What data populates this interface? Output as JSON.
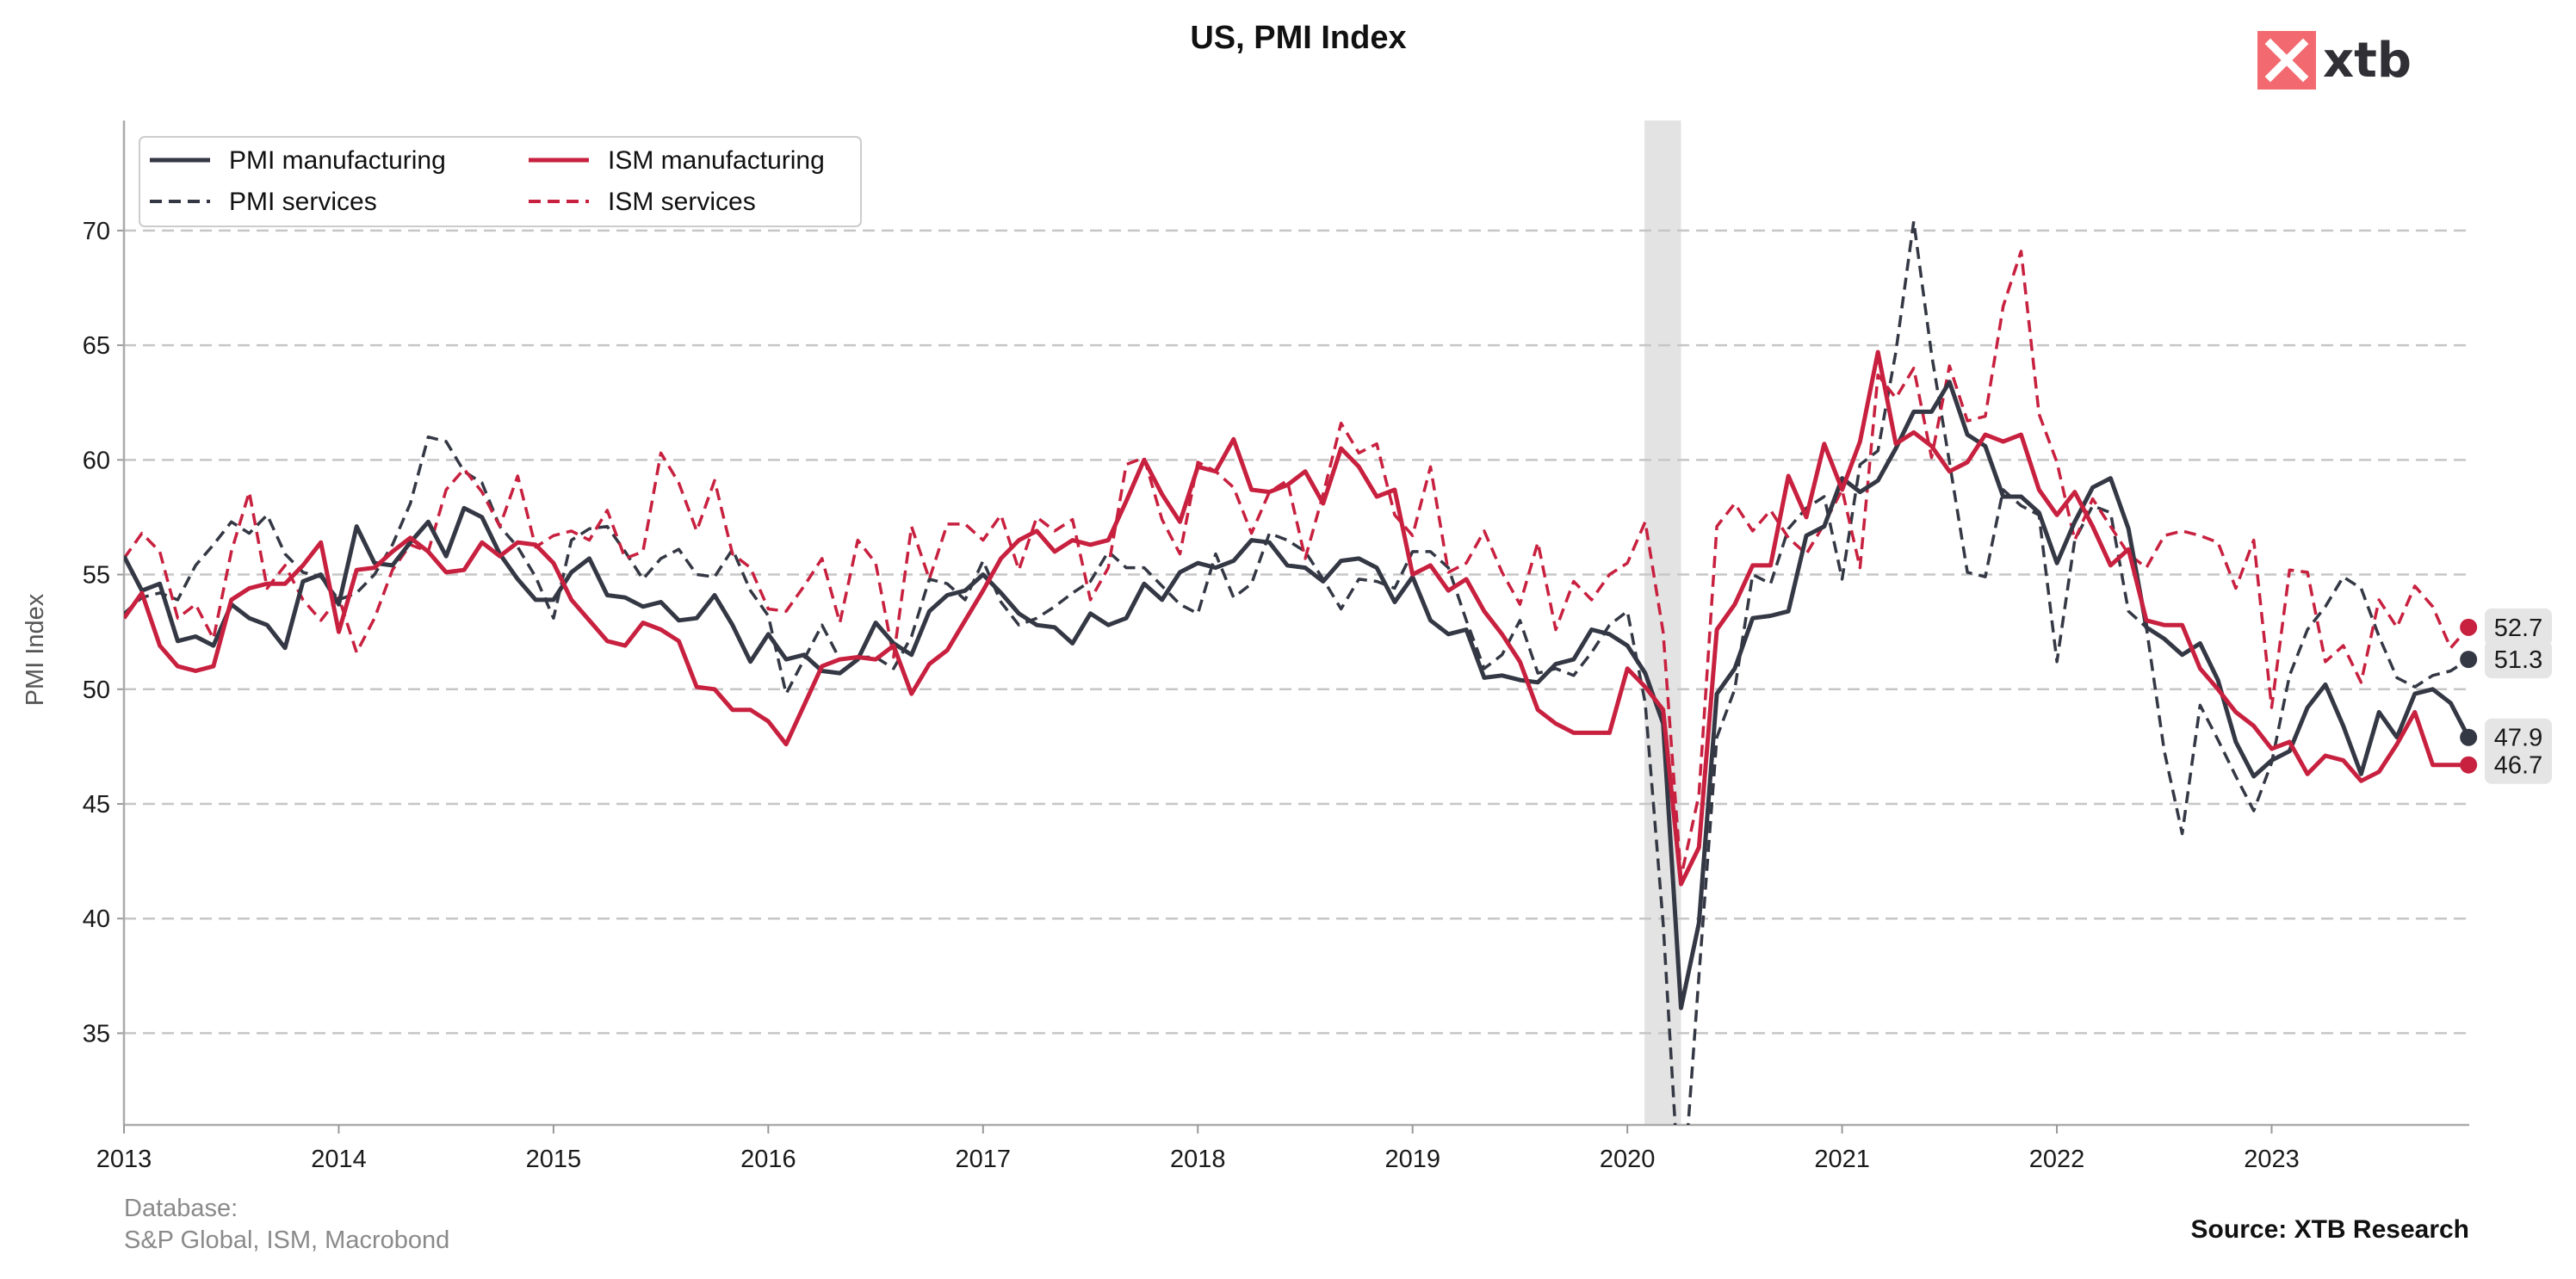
{
  "logo": {
    "text": "xtb",
    "color": "#f26a6f"
  },
  "footer": {
    "database_label": "Database:",
    "database_sources": "S&P Global, ISM, Macrobond",
    "source": "Source: XTB Research"
  },
  "colors": {
    "dark": "#343844",
    "red": "#c8203f",
    "shade": "#e3e3e3",
    "grid": "#c6c6c6"
  },
  "chart_data": {
    "type": "line",
    "title": "US, PMI Index",
    "ylabel": "PMI Index",
    "xlabel": "",
    "xlim": [
      2013.0,
      2023.92
    ],
    "ylim": [
      31,
      74.8
    ],
    "yticks": [
      35,
      40,
      45,
      50,
      55,
      60,
      65,
      70
    ],
    "xticks": [
      2013,
      2014,
      2015,
      2016,
      2017,
      2018,
      2019,
      2020,
      2021,
      2022,
      2023
    ],
    "grid": "horizontal dashed",
    "legend_position": "top-left",
    "shaded_period": [
      2020.08,
      2020.25
    ],
    "series_start": 2013.0,
    "series_step": "monthly",
    "series": [
      {
        "name": "PMI manufacturing",
        "color": "#343844",
        "style": "solid",
        "values": [
          55.8,
          54.3,
          54.6,
          52.1,
          52.3,
          51.9,
          53.7,
          53.1,
          52.8,
          51.8,
          54.7,
          55.0,
          53.7,
          57.1,
          55.5,
          55.4,
          56.4,
          57.3,
          55.8,
          57.9,
          57.5,
          55.9,
          54.8,
          53.9,
          53.9,
          55.1,
          55.7,
          54.1,
          54.0,
          53.6,
          53.8,
          53.0,
          53.1,
          54.1,
          52.8,
          51.2,
          52.4,
          51.3,
          51.5,
          50.8,
          50.7,
          51.3,
          52.9,
          52.0,
          51.5,
          53.4,
          54.1,
          54.3,
          55.0,
          54.2,
          53.3,
          52.8,
          52.7,
          52.0,
          53.3,
          52.8,
          53.1,
          54.6,
          53.9,
          55.1,
          55.5,
          55.3,
          55.6,
          56.5,
          56.4,
          55.4,
          55.3,
          54.7,
          55.6,
          55.7,
          55.3,
          53.8,
          54.9,
          53.0,
          52.4,
          52.6,
          50.5,
          50.6,
          50.4,
          50.3,
          51.1,
          51.3,
          52.6,
          52.4,
          51.9,
          50.7,
          48.5,
          36.1,
          39.8,
          49.8,
          50.9,
          53.1,
          53.2,
          53.4,
          56.7,
          57.1,
          59.2,
          58.6,
          59.1,
          60.5,
          62.1,
          62.1,
          63.4,
          61.1,
          60.6,
          58.4,
          58.4,
          57.7,
          55.5,
          57.3,
          58.8,
          59.2,
          57.0,
          52.7,
          52.2,
          51.5,
          52.0,
          50.4,
          47.7,
          46.2,
          46.9,
          47.3,
          49.2,
          50.2,
          48.4,
          46.3,
          49.0,
          47.9,
          49.8,
          50.0,
          49.4,
          47.9
        ]
      },
      {
        "name": "ISM manufacturing",
        "color": "#c8203f",
        "style": "solid",
        "values": [
          53.1,
          54.2,
          51.9,
          51.0,
          50.8,
          51.0,
          53.9,
          54.4,
          54.6,
          54.6,
          55.4,
          56.4,
          52.5,
          55.2,
          55.3,
          56.0,
          56.6,
          56.0,
          55.1,
          55.2,
          56.4,
          55.8,
          56.4,
          56.3,
          55.5,
          53.9,
          53.0,
          52.1,
          51.9,
          52.9,
          52.6,
          52.1,
          50.1,
          50.0,
          49.1,
          49.1,
          48.6,
          47.6,
          49.3,
          51.0,
          51.3,
          51.4,
          51.3,
          51.9,
          49.8,
          51.1,
          51.7,
          53.0,
          54.3,
          55.7,
          56.5,
          56.9,
          56.0,
          56.5,
          56.3,
          56.5,
          58.2,
          60.0,
          58.5,
          57.3,
          59.7,
          59.5,
          60.9,
          58.7,
          58.6,
          58.9,
          59.5,
          58.1,
          60.5,
          59.7,
          58.4,
          58.7,
          55.0,
          55.4,
          54.3,
          54.8,
          53.4,
          52.4,
          51.2,
          49.1,
          48.5,
          48.1,
          48.1,
          48.1,
          50.9,
          50.1,
          49.1,
          41.5,
          43.1,
          52.6,
          53.7,
          55.4,
          55.4,
          59.3,
          57.5,
          60.7,
          58.7,
          60.8,
          64.7,
          60.7,
          61.2,
          60.6,
          59.5,
          59.9,
          61.1,
          60.8,
          61.1,
          58.7,
          57.6,
          58.6,
          57.1,
          55.4,
          56.1,
          53.0,
          52.8,
          52.8,
          50.9,
          50.0,
          49.0,
          48.4,
          47.4,
          47.7,
          46.3,
          47.1,
          46.9,
          46.0,
          46.4,
          47.6,
          49.0,
          46.7,
          46.7,
          46.7
        ]
      },
      {
        "name": "PMI services",
        "color": "#343844",
        "style": "dashed",
        "values": [
          53.3,
          54.0,
          54.2,
          53.9,
          55.4,
          56.3,
          57.3,
          56.8,
          57.6,
          55.9,
          55.1,
          54.9,
          53.9,
          54.2,
          55.0,
          56.3,
          58.1,
          61.0,
          60.8,
          59.5,
          59.0,
          57.1,
          56.2,
          54.9,
          53.1,
          56.5,
          57.0,
          57.1,
          56.0,
          54.8,
          55.7,
          56.1,
          55.0,
          54.9,
          56.1,
          54.3,
          53.2,
          49.8,
          51.3,
          52.8,
          51.3,
          51.4,
          51.4,
          50.9,
          52.3,
          54.8,
          54.6,
          53.9,
          55.6,
          53.8,
          52.8,
          53.1,
          53.6,
          54.2,
          54.7,
          56.0,
          55.3,
          55.3,
          54.5,
          53.7,
          53.3,
          55.9,
          54.0,
          54.6,
          56.8,
          56.5,
          56.0,
          54.8,
          53.5,
          54.8,
          54.7,
          54.4,
          56.0,
          56.0,
          55.3,
          53.0,
          50.9,
          51.5,
          53.0,
          50.7,
          50.9,
          50.6,
          51.6,
          52.8,
          53.4,
          49.4,
          39.8,
          26.7,
          37.5,
          47.9,
          50.0,
          55.0,
          54.6,
          57.0,
          57.9,
          58.4,
          54.8,
          59.8,
          60.4,
          64.7,
          70.4,
          64.6,
          59.9,
          55.1,
          54.9,
          58.7,
          58.0,
          57.6,
          51.2,
          56.5,
          58.0,
          57.7,
          53.4,
          52.7,
          47.3,
          43.7,
          49.3,
          47.8,
          46.2,
          44.7,
          46.8,
          50.6,
          52.6,
          53.6,
          54.9,
          54.4,
          52.3,
          50.5,
          50.1,
          50.6,
          50.8,
          51.3
        ]
      },
      {
        "name": "ISM services",
        "color": "#c8203f",
        "style": "dashed",
        "values": [
          55.7,
          56.8,
          56.0,
          53.1,
          53.7,
          52.2,
          56.0,
          58.6,
          54.4,
          55.4,
          53.9,
          53.0,
          54.0,
          51.6,
          53.1,
          55.2,
          56.3,
          56.0,
          58.7,
          59.6,
          58.6,
          57.1,
          59.3,
          56.2,
          56.7,
          56.9,
          56.5,
          57.8,
          55.7,
          56.0,
          60.3,
          59.0,
          56.9,
          59.1,
          55.9,
          55.3,
          53.5,
          53.4,
          54.5,
          55.7,
          52.9,
          56.5,
          55.5,
          51.4,
          57.1,
          54.8,
          57.2,
          57.2,
          56.5,
          57.6,
          55.2,
          57.5,
          56.9,
          57.4,
          53.9,
          55.3,
          59.8,
          60.1,
          57.4,
          55.9,
          59.9,
          59.5,
          58.8,
          56.8,
          58.6,
          59.1,
          55.7,
          58.5,
          61.6,
          60.3,
          60.7,
          57.6,
          56.7,
          59.7,
          55.1,
          55.5,
          56.9,
          55.1,
          53.7,
          56.4,
          52.6,
          54.7,
          53.9,
          55.0,
          55.5,
          57.3,
          52.5,
          41.8,
          45.4,
          57.1,
          58.1,
          56.9,
          57.8,
          56.6,
          55.9,
          57.2,
          58.7,
          55.3,
          63.7,
          62.7,
          64.0,
          60.1,
          64.1,
          61.7,
          61.9,
          66.7,
          69.1,
          62.0,
          59.9,
          56.5,
          58.3,
          57.1,
          55.9,
          55.3,
          56.7,
          56.9,
          56.7,
          56.4,
          54.4,
          56.5,
          49.2,
          55.2,
          55.1,
          51.2,
          51.9,
          50.3,
          53.9,
          52.7,
          54.5,
          53.6,
          51.8,
          52.7
        ]
      }
    ],
    "end_labels": [
      {
        "text": "52.7",
        "color": "#c8203f"
      },
      {
        "text": "51.3",
        "color": "#343844"
      },
      {
        "text": "47.9",
        "color": "#343844"
      },
      {
        "text": "46.7",
        "color": "#c8203f"
      }
    ]
  }
}
